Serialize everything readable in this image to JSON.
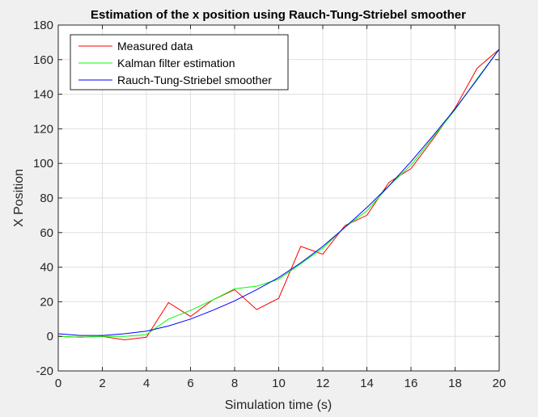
{
  "chart_data": {
    "type": "line",
    "title": "Estimation of the x position using Rauch-Tung-Striebel smoother",
    "xlabel": "Simulation time (s)",
    "ylabel": "X Position",
    "xlim": [
      0,
      20
    ],
    "ylim": [
      -20,
      180
    ],
    "xticks": [
      0,
      2,
      4,
      6,
      8,
      10,
      12,
      14,
      16,
      18,
      20
    ],
    "yticks": [
      -20,
      0,
      20,
      40,
      60,
      80,
      100,
      120,
      140,
      160,
      180
    ],
    "grid": true,
    "legend_position": "top-left",
    "series": [
      {
        "name": "Measured data",
        "color": "#ff0000",
        "x": [
          0,
          1,
          2,
          3,
          4,
          5,
          6,
          7,
          8,
          9,
          10,
          11,
          12,
          13,
          14,
          15,
          16,
          17,
          18,
          19,
          20
        ],
        "values": [
          0,
          -0.5,
          0,
          -2,
          -0.5,
          19.5,
          11.5,
          21,
          27,
          15.5,
          22,
          52,
          47.5,
          64,
          70,
          89,
          97,
          114,
          132,
          155,
          166
        ]
      },
      {
        "name": "Kalman filter estimation",
        "color": "#00ff00",
        "x": [
          0,
          1,
          2,
          3,
          4,
          5,
          6,
          7,
          8,
          9,
          10,
          11,
          12,
          13,
          14,
          15,
          16,
          17,
          18,
          19,
          20
        ],
        "values": [
          0,
          -0.5,
          0,
          0,
          1,
          10,
          15,
          21,
          27.5,
          29,
          33,
          42,
          51,
          63,
          72.5,
          87,
          99,
          115,
          131,
          149,
          166
        ]
      },
      {
        "name": "Rauch-Tung-Striebel smoother",
        "color": "#0000ff",
        "x": [
          0,
          1,
          2,
          3,
          4,
          5,
          6,
          7,
          8,
          9,
          10,
          11,
          12,
          13,
          14,
          15,
          16,
          17,
          18,
          19,
          20
        ],
        "values": [
          1.5,
          0.5,
          0.5,
          1.5,
          3,
          6,
          10,
          15,
          20.5,
          27,
          34,
          42.5,
          52,
          63,
          74.5,
          87,
          101,
          116,
          131.5,
          148.5,
          166
        ]
      }
    ]
  }
}
